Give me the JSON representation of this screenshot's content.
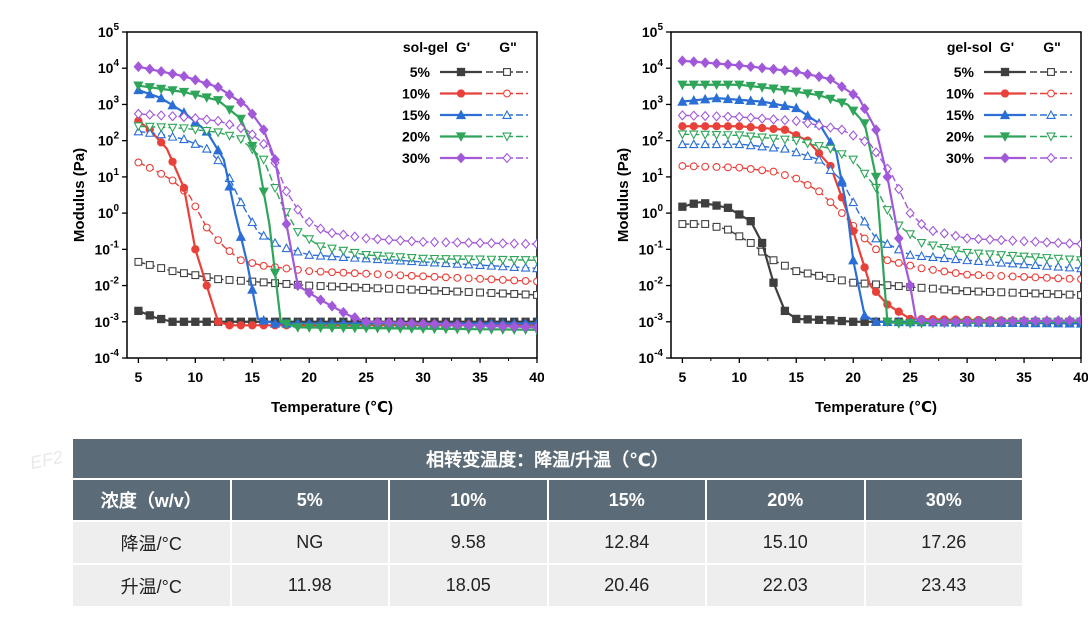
{
  "chart_data": [
    {
      "type": "line",
      "id": "left",
      "legend_title": "sol-gel",
      "legend_g1": "G'",
      "legend_g2": "G\"",
      "xlabel": "Temperature (℃)",
      "ylabel": "Modulus (Pa)",
      "xlim": [
        4,
        40
      ],
      "ylim_log10": [
        -4,
        5
      ],
      "x_ticks": [
        5,
        10,
        15,
        20,
        25,
        30,
        35,
        40
      ],
      "y_ticks_exp": [
        -4,
        -3,
        -2,
        -1,
        0,
        1,
        2,
        3,
        4,
        5
      ],
      "series": [
        {
          "name": "5%",
          "color": "#3f3f3f",
          "marker": "square",
          "gp": [
            [
              5,
              0.002
            ],
            [
              6.5,
              0.0013
            ],
            [
              8,
              0.001
            ],
            [
              12,
              0.001
            ],
            [
              40,
              0.001
            ]
          ],
          "gpp": [
            [
              5,
              0.045
            ],
            [
              8,
              0.025
            ],
            [
              12,
              0.015
            ],
            [
              20,
              0.01
            ],
            [
              30,
              0.0075
            ],
            [
              40,
              0.0055
            ]
          ]
        },
        {
          "name": "10%",
          "color": "#e8413a",
          "marker": "circle",
          "gp": [
            [
              5,
              350
            ],
            [
              6,
              200
            ],
            [
              7.5,
              60
            ],
            [
              9,
              5
            ],
            [
              10,
              0.1
            ],
            [
              11,
              0.01
            ],
            [
              12,
              0.001
            ],
            [
              13,
              0.0008
            ],
            [
              40,
              0.0008
            ]
          ],
          "gpp": [
            [
              5,
              25
            ],
            [
              6.5,
              15
            ],
            [
              8,
              8
            ],
            [
              9.5,
              3
            ],
            [
              11,
              0.4
            ],
            [
              12.5,
              0.12
            ],
            [
              14,
              0.05
            ],
            [
              16,
              0.035
            ],
            [
              20,
              0.025
            ],
            [
              30,
              0.018
            ],
            [
              40,
              0.013
            ]
          ]
        },
        {
          "name": "15%",
          "color": "#2b6fd6",
          "marker": "triangle-up",
          "gp": [
            [
              5,
              2500
            ],
            [
              7,
              1500
            ],
            [
              9,
              600
            ],
            [
              11,
              180
            ],
            [
              12.5,
              30
            ],
            [
              13.5,
              1
            ],
            [
              14.5,
              0.05
            ],
            [
              15.5,
              0.0012
            ],
            [
              17,
              0.0009
            ],
            [
              40,
              0.0009
            ]
          ],
          "gpp": [
            [
              5,
              180
            ],
            [
              7,
              150
            ],
            [
              9,
              110
            ],
            [
              11,
              60
            ],
            [
              12.5,
              20
            ],
            [
              14,
              2
            ],
            [
              15.5,
              0.3
            ],
            [
              17.5,
              0.12
            ],
            [
              20,
              0.07
            ],
            [
              30,
              0.045
            ],
            [
              40,
              0.03
            ]
          ]
        },
        {
          "name": "20%",
          "color": "#2fa55a",
          "marker": "triangle-down",
          "gp": [
            [
              5,
              3300
            ],
            [
              9,
              2200
            ],
            [
              12,
              1300
            ],
            [
              14,
              400
            ],
            [
              15.5,
              30
            ],
            [
              16.5,
              0.5
            ],
            [
              17.5,
              0.001
            ],
            [
              19,
              0.0007
            ],
            [
              40,
              0.0006
            ]
          ],
          "gpp": [
            [
              5,
              250
            ],
            [
              9,
              220
            ],
            [
              12,
              170
            ],
            [
              14,
              110
            ],
            [
              16,
              30
            ],
            [
              17.5,
              2
            ],
            [
              19,
              0.3
            ],
            [
              21,
              0.12
            ],
            [
              25,
              0.07
            ],
            [
              30,
              0.055
            ],
            [
              40,
              0.05
            ]
          ]
        },
        {
          "name": "30%",
          "color": "#a259d9",
          "marker": "diamond",
          "gp": [
            [
              5,
              11000
            ],
            [
              9,
              6000
            ],
            [
              12,
              3000
            ],
            [
              14.5,
              900
            ],
            [
              16,
              200
            ],
            [
              17,
              30
            ],
            [
              18,
              0.5
            ],
            [
              19,
              0.01
            ],
            [
              21,
              0.004
            ],
            [
              23.5,
              0.0015
            ],
            [
              25,
              0.001
            ],
            [
              40,
              0.0007
            ]
          ],
          "gpp": [
            [
              5,
              550
            ],
            [
              9,
              450
            ],
            [
              12,
              350
            ],
            [
              14.5,
              200
            ],
            [
              16.5,
              60
            ],
            [
              18,
              4
            ],
            [
              19.5,
              0.7
            ],
            [
              21.5,
              0.3
            ],
            [
              25,
              0.2
            ],
            [
              30,
              0.16
            ],
            [
              40,
              0.14
            ]
          ]
        }
      ]
    },
    {
      "type": "line",
      "id": "right",
      "legend_title": "gel-sol",
      "legend_g1": "G'",
      "legend_g2": "G\"",
      "xlabel": "Temperature (℃)",
      "ylabel": "Modulus (Pa)",
      "xlim": [
        4,
        40
      ],
      "ylim_log10": [
        -4,
        5
      ],
      "x_ticks": [
        5,
        10,
        15,
        20,
        25,
        30,
        35,
        40
      ],
      "y_ticks_exp": [
        -4,
        -3,
        -2,
        -1,
        0,
        1,
        2,
        3,
        4,
        5
      ],
      "series": [
        {
          "name": "5%",
          "color": "#3f3f3f",
          "marker": "square",
          "gp": [
            [
              5,
              1.5
            ],
            [
              6.5,
              2
            ],
            [
              9,
              1.4
            ],
            [
              11,
              0.6
            ],
            [
              12,
              0.15
            ],
            [
              13,
              0.012
            ],
            [
              14,
              0.002
            ],
            [
              15,
              0.0012
            ],
            [
              18,
              0.0011
            ],
            [
              20,
              0.001
            ],
            [
              40,
              0.001
            ]
          ],
          "gpp": [
            [
              5,
              0.5
            ],
            [
              7,
              0.5
            ],
            [
              9,
              0.35
            ],
            [
              11,
              0.15
            ],
            [
              13,
              0.05
            ],
            [
              15,
              0.025
            ],
            [
              20,
              0.012
            ],
            [
              30,
              0.007
            ],
            [
              40,
              0.0055
            ]
          ]
        },
        {
          "name": "10%",
          "color": "#e8413a",
          "marker": "circle",
          "gp": [
            [
              5,
              250
            ],
            [
              10,
              250
            ],
            [
              14,
              200
            ],
            [
              16,
              100
            ],
            [
              18,
              20
            ],
            [
              19.5,
              1
            ],
            [
              20.5,
              0.1
            ],
            [
              21.5,
              0.01
            ],
            [
              23,
              0.003
            ],
            [
              25,
              0.0012
            ],
            [
              40,
              0.001
            ]
          ],
          "gpp": [
            [
              5,
              20
            ],
            [
              10,
              18
            ],
            [
              13,
              14
            ],
            [
              15,
              9
            ],
            [
              17,
              4
            ],
            [
              19,
              1
            ],
            [
              21,
              0.2
            ],
            [
              23,
              0.05
            ],
            [
              26,
              0.03
            ],
            [
              30,
              0.02
            ],
            [
              40,
              0.015
            ]
          ]
        },
        {
          "name": "15%",
          "color": "#2b6fd6",
          "marker": "triangle-up",
          "gp": [
            [
              5,
              1200
            ],
            [
              8,
              1500
            ],
            [
              12,
              1200
            ],
            [
              15,
              800
            ],
            [
              17,
              300
            ],
            [
              18.5,
              50
            ],
            [
              19.5,
              1
            ],
            [
              20,
              0.05
            ],
            [
              21,
              0.0015
            ],
            [
              22,
              0.001
            ],
            [
              40,
              0.0009
            ]
          ],
          "gpp": [
            [
              5,
              80
            ],
            [
              10,
              80
            ],
            [
              14,
              60
            ],
            [
              17,
              30
            ],
            [
              19,
              8
            ],
            [
              20.5,
              1
            ],
            [
              22,
              0.2
            ],
            [
              25,
              0.07
            ],
            [
              30,
              0.05
            ],
            [
              40,
              0.03
            ]
          ]
        },
        {
          "name": "20%",
          "color": "#2fa55a",
          "marker": "triangle-down",
          "gp": [
            [
              5,
              3500
            ],
            [
              10,
              3500
            ],
            [
              14,
              2500
            ],
            [
              17,
              1800
            ],
            [
              19.5,
              1000
            ],
            [
              21,
              300
            ],
            [
              22,
              10
            ],
            [
              22.5,
              0.1
            ],
            [
              23,
              0.001
            ],
            [
              24,
              0.0009
            ],
            [
              40,
              0.001
            ]
          ],
          "gpp": [
            [
              5,
              150
            ],
            [
              10,
              140
            ],
            [
              15,
              100
            ],
            [
              18,
              60
            ],
            [
              20,
              30
            ],
            [
              22,
              5
            ],
            [
              23.5,
              0.6
            ],
            [
              26,
              0.15
            ],
            [
              30,
              0.08
            ],
            [
              40,
              0.05
            ]
          ]
        },
        {
          "name": "30%",
          "color": "#a259d9",
          "marker": "diamond",
          "gp": [
            [
              5,
              16000
            ],
            [
              10,
              12000
            ],
            [
              15,
              8000
            ],
            [
              18,
              5000
            ],
            [
              20.5,
              1500
            ],
            [
              22,
              200
            ],
            [
              23,
              10
            ],
            [
              24,
              0.2
            ],
            [
              25,
              0.01
            ],
            [
              25.5,
              0.0012
            ],
            [
              27,
              0.001
            ],
            [
              40,
              0.0011
            ]
          ],
          "gpp": [
            [
              5,
              500
            ],
            [
              10,
              450
            ],
            [
              15,
              350
            ],
            [
              19,
              200
            ],
            [
              21.5,
              80
            ],
            [
              23.5,
              10
            ],
            [
              25,
              1
            ],
            [
              26.5,
              0.35
            ],
            [
              30,
              0.2
            ],
            [
              40,
              0.14
            ]
          ]
        }
      ]
    }
  ],
  "table": {
    "title": "相转变温度：降温/升温（℃）",
    "headers": [
      "浓度（w/v）",
      "5%",
      "10%",
      "15%",
      "20%",
      "30%"
    ],
    "rows": [
      [
        "降温/°C",
        "NG",
        "9.58",
        "12.84",
        "15.10",
        "17.26"
      ],
      [
        "升温/°C",
        "11.98",
        "18.05",
        "20.46",
        "22.03",
        "23.43"
      ]
    ]
  }
}
